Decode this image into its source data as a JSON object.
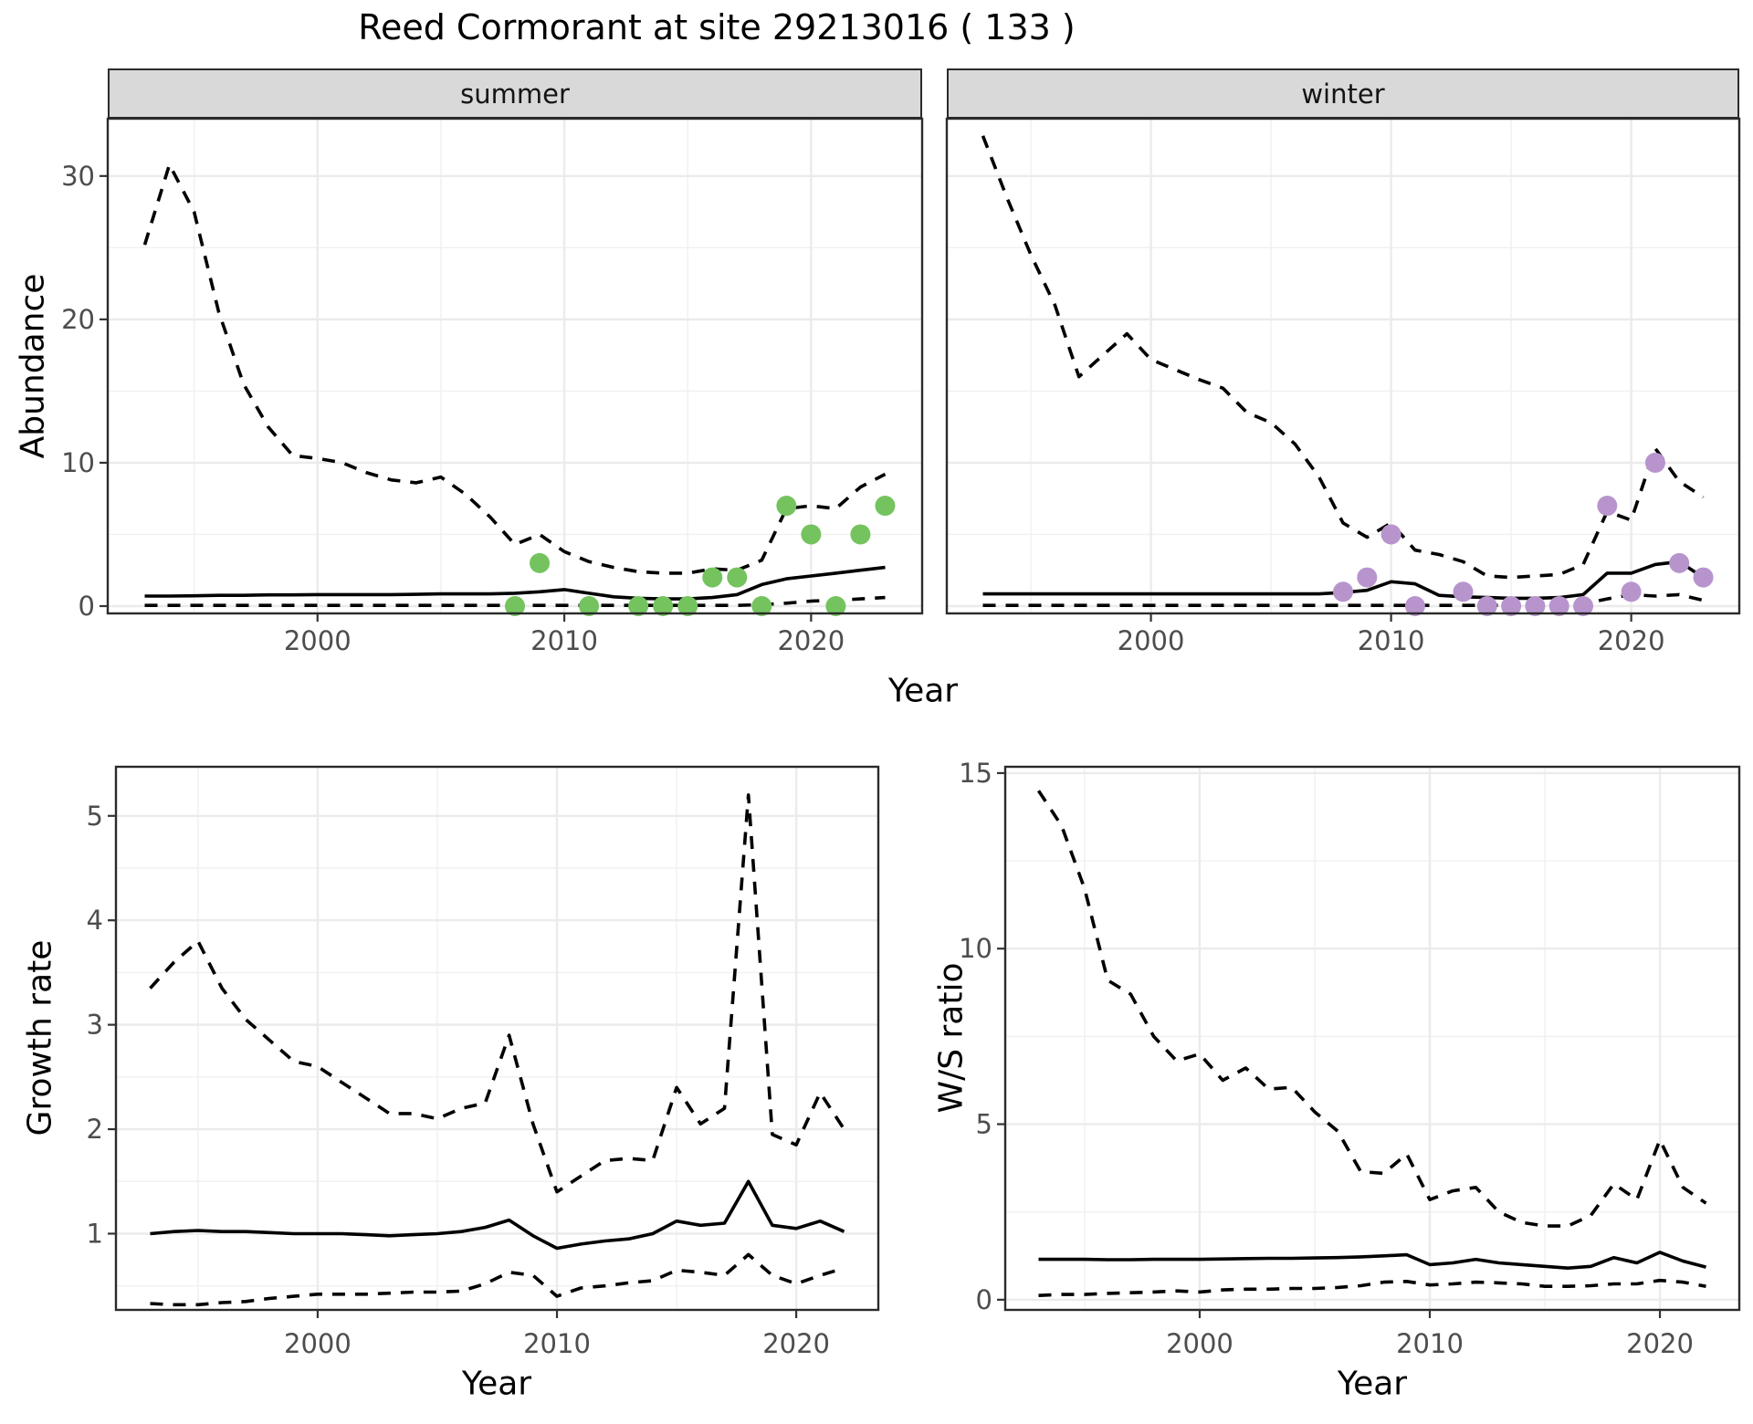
{
  "title": "Reed Cormorant at site 29213016 ( 133 )",
  "axes": {
    "year_label": "Year",
    "abundance_label": "Abundance",
    "growth_label": "Growth rate",
    "ws_label": "W/S ratio"
  },
  "colors": {
    "summer_points": "#74c35f",
    "winter_points": "#b795cc",
    "line": "#000000",
    "grid_major": "#ebebeb",
    "grid_minor": "#f0f0f0",
    "panel_border": "#2b2b2b",
    "tick_text": "#4d4d4d",
    "strip_fill": "#d9d9d9"
  },
  "chart_data": [
    {
      "id": "abundance_summer",
      "type": "line",
      "facet_label": "summer",
      "xlabel": "Year",
      "ylabel": "Abundance",
      "xlim": [
        1991.5,
        2024.5
      ],
      "ylim": [
        -0.51,
        34.0
      ],
      "x_ticks": [
        2000,
        2010,
        2020
      ],
      "x_minor": [
        1995,
        2005,
        2015
      ],
      "y_ticks": [
        0,
        10,
        20,
        30
      ],
      "y_minor": [
        5,
        15,
        25
      ],
      "series": [
        {
          "name": "upper_95ci",
          "style": "dashed",
          "x": [
            1993,
            1994,
            1995,
            1996,
            1997,
            1998,
            1999,
            2000,
            2001,
            2002,
            2003,
            2004,
            2005,
            2006,
            2007,
            2008,
            2009,
            2010,
            2011,
            2012,
            2013,
            2014,
            2015,
            2016,
            2017,
            2018,
            2019,
            2020,
            2021,
            2022,
            2023
          ],
          "y": [
            25.2,
            30.8,
            27.5,
            20.5,
            15.5,
            12.5,
            10.5,
            10.3,
            10.0,
            9.3,
            8.8,
            8.6,
            9.0,
            7.8,
            6.2,
            4.3,
            5.0,
            3.8,
            3.1,
            2.7,
            2.4,
            2.3,
            2.3,
            2.6,
            2.5,
            3.2,
            6.8,
            7.0,
            6.8,
            8.3,
            9.2
          ]
        },
        {
          "name": "fitted",
          "style": "solid",
          "x": [
            1993,
            1994,
            1995,
            1996,
            1997,
            1998,
            1999,
            2000,
            2001,
            2002,
            2003,
            2004,
            2005,
            2006,
            2007,
            2008,
            2009,
            2010,
            2011,
            2012,
            2013,
            2014,
            2015,
            2016,
            2017,
            2018,
            2019,
            2020,
            2021,
            2022,
            2023
          ],
          "y": [
            0.7,
            0.7,
            0.72,
            0.75,
            0.75,
            0.78,
            0.78,
            0.8,
            0.8,
            0.8,
            0.8,
            0.82,
            0.85,
            0.85,
            0.85,
            0.9,
            1.0,
            1.15,
            0.9,
            0.65,
            0.55,
            0.5,
            0.5,
            0.6,
            0.8,
            1.5,
            1.9,
            2.1,
            2.3,
            2.5,
            2.7
          ]
        },
        {
          "name": "lower_95ci",
          "style": "dashed",
          "x": [
            1993,
            1994,
            1995,
            1996,
            1997,
            1998,
            1999,
            2000,
            2001,
            2002,
            2003,
            2004,
            2005,
            2006,
            2007,
            2008,
            2009,
            2010,
            2011,
            2012,
            2013,
            2014,
            2015,
            2016,
            2017,
            2018,
            2019,
            2020,
            2021,
            2022,
            2023
          ],
          "y": [
            0.05,
            0.05,
            0.05,
            0.05,
            0.05,
            0.05,
            0.05,
            0.05,
            0.05,
            0.05,
            0.05,
            0.05,
            0.05,
            0.05,
            0.05,
            0.05,
            0.05,
            0.05,
            0.05,
            0.05,
            0.05,
            0.05,
            0.05,
            0.05,
            0.05,
            0.1,
            0.2,
            0.35,
            0.4,
            0.5,
            0.6
          ]
        }
      ],
      "points": {
        "name": "observed_counts",
        "color": "#74c35f",
        "data": [
          [
            2008,
            0
          ],
          [
            2009,
            3
          ],
          [
            2011,
            0
          ],
          [
            2013,
            0
          ],
          [
            2014,
            0
          ],
          [
            2015,
            0
          ],
          [
            2016,
            2
          ],
          [
            2017,
            2
          ],
          [
            2018,
            0
          ],
          [
            2019,
            7
          ],
          [
            2020,
            5
          ],
          [
            2021,
            0
          ],
          [
            2022,
            5
          ],
          [
            2023,
            7
          ]
        ]
      }
    },
    {
      "id": "abundance_winter",
      "type": "line",
      "facet_label": "winter",
      "xlabel": "Year",
      "ylabel": "Abundance",
      "xlim": [
        1991.5,
        2024.5
      ],
      "ylim": [
        -0.51,
        34.0
      ],
      "x_ticks": [
        2000,
        2010,
        2020
      ],
      "x_minor": [
        1995,
        2005,
        2015
      ],
      "y_ticks": [
        0,
        10,
        20,
        30
      ],
      "y_minor": [
        5,
        15,
        25
      ],
      "series": [
        {
          "name": "upper_95ci",
          "style": "dashed",
          "x": [
            1993,
            1994,
            1995,
            1996,
            1997,
            1998,
            1999,
            2000,
            2001,
            2002,
            2003,
            2004,
            2005,
            2006,
            2007,
            2008,
            2009,
            2010,
            2011,
            2012,
            2013,
            2014,
            2015,
            2016,
            2017,
            2018,
            2019,
            2020,
            2021,
            2022,
            2023
          ],
          "y": [
            32.8,
            28.5,
            24.5,
            21.0,
            16.0,
            17.5,
            19.0,
            17.2,
            16.5,
            15.8,
            15.2,
            13.5,
            12.8,
            11.3,
            9.0,
            5.8,
            4.8,
            5.8,
            3.9,
            3.6,
            3.1,
            2.1,
            2.0,
            2.1,
            2.2,
            2.9,
            6.6,
            6.0,
            11.0,
            8.7,
            7.6
          ]
        },
        {
          "name": "fitted",
          "style": "solid",
          "x": [
            1993,
            1994,
            1995,
            1996,
            1997,
            1998,
            1999,
            2000,
            2001,
            2002,
            2003,
            2004,
            2005,
            2006,
            2007,
            2008,
            2009,
            2010,
            2011,
            2012,
            2013,
            2014,
            2015,
            2016,
            2017,
            2018,
            2019,
            2020,
            2021,
            2022,
            2023
          ],
          "y": [
            0.85,
            0.85,
            0.85,
            0.85,
            0.85,
            0.85,
            0.85,
            0.85,
            0.85,
            0.85,
            0.85,
            0.85,
            0.85,
            0.85,
            0.85,
            0.95,
            1.1,
            1.7,
            1.55,
            0.75,
            0.65,
            0.6,
            0.55,
            0.55,
            0.6,
            0.8,
            2.3,
            2.3,
            2.9,
            3.1,
            2.0
          ]
        },
        {
          "name": "lower_95ci",
          "style": "dashed",
          "x": [
            1993,
            1994,
            1995,
            1996,
            1997,
            1998,
            1999,
            2000,
            2001,
            2002,
            2003,
            2004,
            2005,
            2006,
            2007,
            2008,
            2009,
            2010,
            2011,
            2012,
            2013,
            2014,
            2015,
            2016,
            2017,
            2018,
            2019,
            2020,
            2021,
            2022,
            2023
          ],
          "y": [
            0.05,
            0.05,
            0.05,
            0.05,
            0.05,
            0.05,
            0.05,
            0.05,
            0.05,
            0.05,
            0.05,
            0.05,
            0.05,
            0.05,
            0.05,
            0.05,
            0.05,
            0.05,
            0.05,
            0.05,
            0.05,
            0.05,
            0.05,
            0.05,
            0.05,
            0.15,
            0.5,
            0.8,
            0.7,
            0.8,
            0.4
          ]
        }
      ],
      "points": {
        "name": "observed_counts",
        "color": "#b795cc",
        "data": [
          [
            2008,
            1
          ],
          [
            2009,
            2
          ],
          [
            2010,
            5
          ],
          [
            2011,
            0
          ],
          [
            2013,
            1
          ],
          [
            2014,
            0
          ],
          [
            2015,
            0
          ],
          [
            2016,
            0
          ],
          [
            2017,
            0
          ],
          [
            2018,
            0
          ],
          [
            2019,
            7
          ],
          [
            2020,
            1
          ],
          [
            2021,
            10
          ],
          [
            2022,
            3
          ],
          [
            2023,
            2
          ]
        ]
      }
    },
    {
      "id": "growth_rate",
      "type": "line",
      "facet_label": "",
      "xlabel": "Year",
      "ylabel": "Growth rate",
      "xlim": [
        1991.57,
        2023.43
      ],
      "ylim": [
        0.27,
        5.47
      ],
      "x_ticks": [
        2000,
        2010,
        2020
      ],
      "x_minor": [
        1995,
        2005,
        2015
      ],
      "y_ticks": [
        1,
        2,
        3,
        4,
        5
      ],
      "y_minor": [
        0.5,
        1.5,
        2.5,
        3.5,
        4.5
      ],
      "series": [
        {
          "name": "upper_95ci",
          "style": "dashed",
          "x": [
            1993,
            1994,
            1995,
            1996,
            1997,
            1998,
            1999,
            2000,
            2001,
            2002,
            2003,
            2004,
            2005,
            2006,
            2007,
            2008,
            2009,
            2010,
            2011,
            2012,
            2013,
            2014,
            2015,
            2016,
            2017,
            2018,
            2019,
            2020,
            2021,
            2022
          ],
          "y": [
            3.35,
            3.6,
            3.8,
            3.35,
            3.05,
            2.85,
            2.65,
            2.6,
            2.45,
            2.3,
            2.15,
            2.15,
            2.1,
            2.2,
            2.25,
            2.9,
            2.05,
            1.4,
            1.55,
            1.7,
            1.72,
            1.7,
            2.4,
            2.05,
            2.2,
            5.2,
            1.95,
            1.85,
            2.35,
            2.0
          ]
        },
        {
          "name": "fitted",
          "style": "solid",
          "x": [
            1993,
            1994,
            1995,
            1996,
            1997,
            1998,
            1999,
            2000,
            2001,
            2002,
            2003,
            2004,
            2005,
            2006,
            2007,
            2008,
            2009,
            2010,
            2011,
            2012,
            2013,
            2014,
            2015,
            2016,
            2017,
            2018,
            2019,
            2020,
            2021,
            2022
          ],
          "y": [
            1.0,
            1.02,
            1.03,
            1.02,
            1.02,
            1.01,
            1.0,
            1.0,
            1.0,
            0.99,
            0.98,
            0.99,
            1.0,
            1.02,
            1.06,
            1.13,
            0.98,
            0.86,
            0.9,
            0.93,
            0.95,
            1.0,
            1.12,
            1.08,
            1.1,
            1.5,
            1.08,
            1.05,
            1.12,
            1.02
          ]
        },
        {
          "name": "lower_95ci",
          "style": "dashed",
          "x": [
            1993,
            1994,
            1995,
            1996,
            1997,
            1998,
            1999,
            2000,
            2001,
            2002,
            2003,
            2004,
            2005,
            2006,
            2007,
            2008,
            2009,
            2010,
            2011,
            2012,
            2013,
            2014,
            2015,
            2016,
            2017,
            2018,
            2019,
            2020,
            2021,
            2022
          ],
          "y": [
            0.33,
            0.32,
            0.32,
            0.34,
            0.35,
            0.38,
            0.4,
            0.42,
            0.42,
            0.42,
            0.43,
            0.44,
            0.44,
            0.45,
            0.52,
            0.63,
            0.6,
            0.4,
            0.48,
            0.5,
            0.53,
            0.55,
            0.65,
            0.63,
            0.6,
            0.8,
            0.6,
            0.52,
            0.6,
            0.67
          ]
        }
      ],
      "points": null
    },
    {
      "id": "ws_ratio",
      "type": "line",
      "facet_label": "",
      "xlabel": "Year",
      "ylabel": "W/S ratio",
      "xlim": [
        1991.55,
        2023.45
      ],
      "ylim": [
        -0.29,
        15.18
      ],
      "x_ticks": [
        2000,
        2010,
        2020
      ],
      "x_minor": [
        1995,
        2005,
        2015
      ],
      "y_ticks": [
        0,
        5,
        10,
        15
      ],
      "y_minor": [
        2.5,
        7.5,
        12.5
      ],
      "series": [
        {
          "name": "upper_95ci",
          "style": "dashed",
          "x": [
            1993,
            1994,
            1995,
            1996,
            1997,
            1998,
            1999,
            2000,
            2001,
            2002,
            2003,
            2004,
            2005,
            2006,
            2007,
            2008,
            2009,
            2010,
            2011,
            2012,
            2013,
            2014,
            2015,
            2016,
            2017,
            2018,
            2019,
            2020,
            2021,
            2022
          ],
          "y": [
            14.5,
            13.5,
            11.7,
            9.1,
            8.7,
            7.5,
            6.8,
            7.0,
            6.25,
            6.6,
            6.0,
            6.05,
            5.35,
            4.8,
            3.65,
            3.6,
            4.15,
            2.85,
            3.1,
            3.2,
            2.5,
            2.2,
            2.1,
            2.1,
            2.4,
            3.3,
            2.85,
            4.55,
            3.2,
            2.75
          ]
        },
        {
          "name": "fitted",
          "style": "solid",
          "x": [
            1993,
            1994,
            1995,
            1996,
            1997,
            1998,
            1999,
            2000,
            2001,
            2002,
            2003,
            2004,
            2005,
            2006,
            2007,
            2008,
            2009,
            2010,
            2011,
            2012,
            2013,
            2014,
            2015,
            2016,
            2017,
            2018,
            2019,
            2020,
            2021,
            2022
          ],
          "y": [
            1.15,
            1.15,
            1.15,
            1.14,
            1.14,
            1.15,
            1.15,
            1.15,
            1.16,
            1.17,
            1.18,
            1.18,
            1.19,
            1.2,
            1.22,
            1.25,
            1.28,
            1.0,
            1.05,
            1.15,
            1.05,
            1.0,
            0.95,
            0.9,
            0.95,
            1.2,
            1.05,
            1.35,
            1.1,
            0.93
          ]
        },
        {
          "name": "lower_95ci",
          "style": "dashed",
          "x": [
            1993,
            1994,
            1995,
            1996,
            1997,
            1998,
            1999,
            2000,
            2001,
            2002,
            2003,
            2004,
            2005,
            2006,
            2007,
            2008,
            2009,
            2010,
            2011,
            2012,
            2013,
            2014,
            2015,
            2016,
            2017,
            2018,
            2019,
            2020,
            2021,
            2022
          ],
          "y": [
            0.12,
            0.15,
            0.15,
            0.18,
            0.2,
            0.22,
            0.25,
            0.22,
            0.28,
            0.3,
            0.3,
            0.32,
            0.32,
            0.35,
            0.4,
            0.5,
            0.52,
            0.42,
            0.45,
            0.5,
            0.48,
            0.45,
            0.38,
            0.38,
            0.4,
            0.45,
            0.45,
            0.55,
            0.5,
            0.38
          ]
        }
      ],
      "points": null
    }
  ]
}
